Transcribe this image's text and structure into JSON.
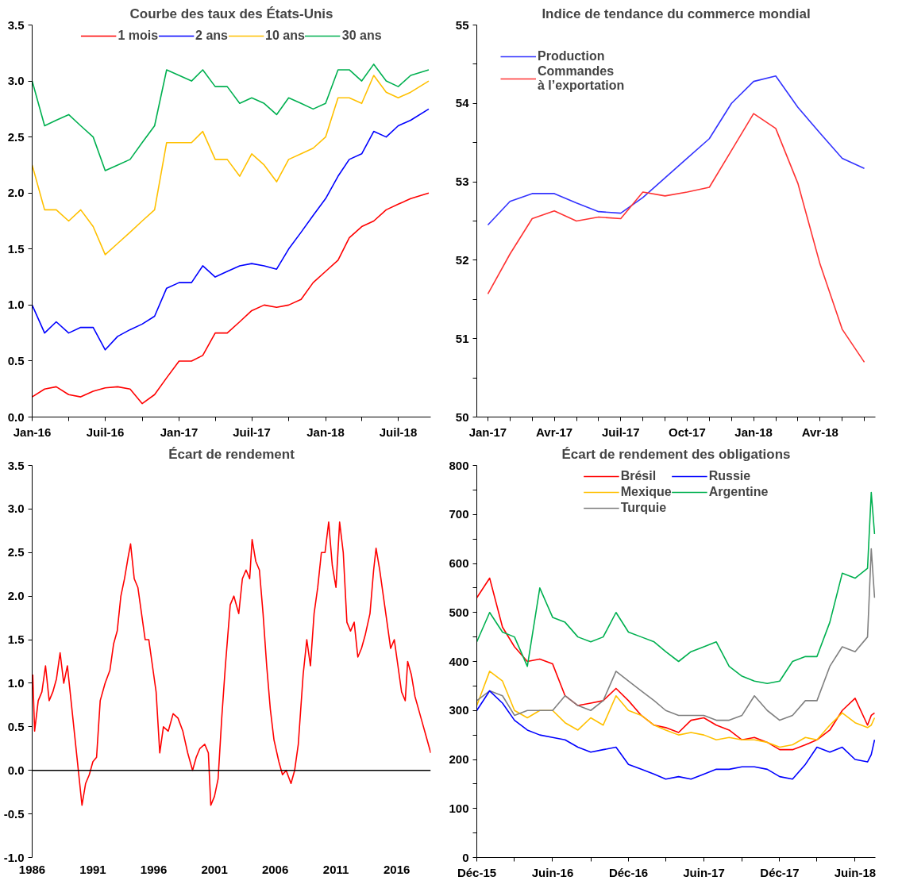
{
  "chart_data": [
    {
      "type": "line",
      "title": "Courbe des taux des États-Unis",
      "legend": "top",
      "grid": false,
      "x": [
        "2016-01",
        "2016-02",
        "2016-03",
        "2016-04",
        "2016-05",
        "2016-06",
        "2016-07",
        "2016-08",
        "2016-09",
        "2016-10",
        "2016-11",
        "2016-12",
        "2017-01",
        "2017-02",
        "2017-03",
        "2017-04",
        "2017-05",
        "2017-06",
        "2017-07",
        "2017-08",
        "2017-09",
        "2017-10",
        "2017-11",
        "2017-12",
        "2018-01",
        "2018-02",
        "2018-03",
        "2018-04",
        "2018-05",
        "2018-06",
        "2018-07",
        "2018-08",
        "2018-09-15"
      ],
      "series": [
        {
          "name": "1 mois",
          "color": "#ff0000",
          "values": [
            0.18,
            0.25,
            0.27,
            0.2,
            0.18,
            0.23,
            0.26,
            0.27,
            0.25,
            0.12,
            0.2,
            0.35,
            0.5,
            0.5,
            0.55,
            0.75,
            0.75,
            0.85,
            0.95,
            1.0,
            0.98,
            1.0,
            1.05,
            1.2,
            1.3,
            1.4,
            1.6,
            1.7,
            1.75,
            1.85,
            1.9,
            1.95,
            2.0
          ]
        },
        {
          "name": "2 ans",
          "color": "#0000ff",
          "values": [
            1.0,
            0.75,
            0.85,
            0.75,
            0.8,
            0.8,
            0.6,
            0.72,
            0.78,
            0.83,
            0.9,
            1.15,
            1.2,
            1.2,
            1.35,
            1.25,
            1.3,
            1.35,
            1.37,
            1.35,
            1.32,
            1.5,
            1.65,
            1.8,
            1.95,
            2.15,
            2.3,
            2.35,
            2.55,
            2.5,
            2.6,
            2.65,
            2.75
          ]
        },
        {
          "name": "10 ans",
          "color": "#ffc000",
          "values": [
            2.25,
            1.85,
            1.85,
            1.75,
            1.85,
            1.7,
            1.45,
            1.55,
            1.65,
            1.75,
            1.85,
            2.45,
            2.45,
            2.45,
            2.55,
            2.3,
            2.3,
            2.15,
            2.35,
            2.25,
            2.1,
            2.3,
            2.35,
            2.4,
            2.5,
            2.85,
            2.85,
            2.8,
            3.05,
            2.9,
            2.85,
            2.9,
            3.0
          ]
        },
        {
          "name": "30 ans",
          "color": "#00b050",
          "values": [
            3.0,
            2.6,
            2.65,
            2.7,
            2.6,
            2.5,
            2.2,
            2.25,
            2.3,
            2.45,
            2.6,
            3.1,
            3.05,
            3.0,
            3.1,
            2.95,
            2.95,
            2.8,
            2.85,
            2.8,
            2.7,
            2.85,
            2.8,
            2.75,
            2.8,
            3.1,
            3.1,
            3.0,
            3.15,
            3.0,
            2.95,
            3.05,
            3.1
          ]
        }
      ],
      "xlim": [
        "2016-01-01",
        "2018-09-20"
      ],
      "xticks": [
        {
          "value": "2016-01",
          "label": "Jan-16"
        },
        {
          "value": "2016-04",
          "label": null
        },
        {
          "value": "2016-07",
          "label": "Juil-16"
        },
        {
          "value": "2016-10",
          "label": null
        },
        {
          "value": "2017-01",
          "label": "Jan-17"
        },
        {
          "value": "2017-04",
          "label": null
        },
        {
          "value": "2017-07",
          "label": "Juil-17"
        },
        {
          "value": "2017-10",
          "label": null
        },
        {
          "value": "2018-01",
          "label": "Jan-18"
        },
        {
          "value": "2018-04",
          "label": null
        },
        {
          "value": "2018-07",
          "label": "Juil-18"
        }
      ],
      "ylim": [
        0,
        3.5
      ],
      "yticks": [
        {
          "value": 0,
          "label": "0.0"
        },
        {
          "value": 0.5,
          "label": "0.5"
        },
        {
          "value": 1,
          "label": "1.0"
        },
        {
          "value": 1.5,
          "label": "1.5"
        },
        {
          "value": 2,
          "label": "2.0"
        },
        {
          "value": 2.5,
          "label": "2.5"
        },
        {
          "value": 3,
          "label": "3.0"
        },
        {
          "value": 3.5,
          "label": "3.5"
        }
      ]
    },
    {
      "type": "line",
      "title": "Indice de tendance du commerce mondial",
      "legend": "top left",
      "grid": false,
      "categories": [
        "Jan-17",
        null,
        null,
        "Avr-17",
        null,
        null,
        "Juil-17",
        null,
        null,
        "Oct-17",
        null,
        null,
        "Jan-18",
        null,
        null,
        "Avr-18",
        null,
        null
      ],
      "series": [
        {
          "name": "Production",
          "color": "#3333ff",
          "values": [
            52.45,
            52.75,
            52.85,
            52.85,
            52.73,
            52.62,
            52.6,
            52.8,
            53.05,
            53.3,
            53.55,
            54.0,
            54.28,
            54.35,
            53.95,
            53.62,
            53.3,
            53.17
          ]
        },
        {
          "name": "Commandes\nà l’exportation",
          "color": "#ff3333",
          "values": [
            51.57,
            52.08,
            52.53,
            52.63,
            52.5,
            52.55,
            52.53,
            52.87,
            52.82,
            52.87,
            52.93,
            53.4,
            53.87,
            53.68,
            52.98,
            51.95,
            51.12,
            50.7
          ]
        }
      ],
      "ylim": [
        50,
        55
      ],
      "yticks": [
        50,
        {
          "value": 50.5,
          "label": null
        },
        51,
        {
          "value": 51.5,
          "label": null
        },
        52,
        {
          "value": 52.5,
          "label": null
        },
        53,
        {
          "value": 53.5,
          "label": null
        },
        54,
        {
          "value": 54.5,
          "label": null
        },
        55
      ]
    },
    {
      "type": "line",
      "title": "Écart de rendement",
      "grid": false,
      "x": [
        1986.05,
        1986.2,
        1986.5,
        1986.8,
        1987.1,
        1987.4,
        1987.7,
        1988.0,
        1988.3,
        1988.6,
        1988.9,
        1989.2,
        1989.5,
        1989.8,
        1990.1,
        1990.4,
        1990.7,
        1991.0,
        1991.3,
        1991.6,
        1992.0,
        1992.4,
        1992.7,
        1993.0,
        1993.3,
        1993.6,
        1993.9,
        1994.1,
        1994.4,
        1994.7,
        1995.0,
        1995.3,
        1995.6,
        1995.9,
        1996.2,
        1996.5,
        1996.8,
        1997.2,
        1997.6,
        1998.0,
        1998.4,
        1998.8,
        1999.2,
        1999.5,
        1999.8,
        2000.2,
        2000.5,
        2000.7,
        2001.0,
        2001.3,
        2001.6,
        2001.9,
        2002.3,
        2002.6,
        2003.0,
        2003.3,
        2003.6,
        2003.9,
        2004.1,
        2004.4,
        2004.7,
        2005.0,
        2005.3,
        2005.6,
        2005.9,
        2006.3,
        2006.6,
        2006.9,
        2007.3,
        2007.6,
        2007.9,
        2008.3,
        2008.6,
        2008.9,
        2009.2,
        2009.5,
        2009.8,
        2010.1,
        2010.4,
        2010.7,
        2011.0,
        2011.3,
        2011.6,
        2011.9,
        2012.2,
        2012.5,
        2012.8,
        2013.1,
        2013.4,
        2013.8,
        2014.1,
        2014.3,
        2014.6,
        2014.9,
        2015.2,
        2015.5,
        2015.8,
        2016.1,
        2016.4,
        2016.7,
        2016.9,
        2017.2,
        2017.5,
        2017.8,
        2018.1,
        2018.4,
        2018.8
      ],
      "series": [
        {
          "color": "#ff0000",
          "values": [
            1.1,
            0.45,
            0.8,
            0.9,
            1.2,
            0.8,
            0.9,
            1.05,
            1.35,
            1.0,
            1.2,
            0.8,
            0.4,
            0.0,
            -0.4,
            -0.15,
            -0.05,
            0.1,
            0.15,
            0.8,
            1.0,
            1.15,
            1.45,
            1.6,
            2.0,
            2.2,
            2.45,
            2.6,
            2.2,
            2.1,
            1.8,
            1.5,
            1.5,
            1.2,
            0.9,
            0.2,
            0.5,
            0.45,
            0.65,
            0.6,
            0.45,
            0.2,
            0.0,
            0.15,
            0.25,
            0.3,
            0.2,
            -0.4,
            -0.3,
            -0.1,
            0.6,
            1.2,
            1.9,
            2.0,
            1.8,
            2.2,
            2.3,
            2.2,
            2.65,
            2.4,
            2.3,
            1.8,
            1.2,
            0.7,
            0.35,
            0.1,
            -0.05,
            0.0,
            -0.15,
            0.0,
            0.3,
            1.1,
            1.5,
            1.2,
            1.8,
            2.1,
            2.5,
            2.5,
            2.85,
            2.35,
            2.1,
            2.85,
            2.5,
            1.7,
            1.6,
            1.7,
            1.3,
            1.4,
            1.55,
            1.8,
            2.3,
            2.55,
            2.3,
            2.0,
            1.7,
            1.4,
            1.5,
            1.2,
            0.9,
            0.8,
            1.25,
            1.1,
            0.85,
            0.7,
            0.55,
            0.4,
            0.2
          ]
        }
      ],
      "xlim": [
        1986,
        2018.8
      ],
      "xticks": [
        1986,
        1991,
        1996,
        2001,
        2006,
        2011,
        2016
      ],
      "ref_lines": [
        {
          "axis": "y",
          "value": 0,
          "color": "#000000"
        }
      ],
      "ylim": [
        -1,
        3.5
      ],
      "yticks": [
        {
          "value": -1,
          "label": "-1.0"
        },
        {
          "value": -0.5,
          "label": "-0.5"
        },
        {
          "value": 0,
          "label": "0.0"
        },
        {
          "value": 0.5,
          "label": "0.5"
        },
        {
          "value": 1,
          "label": "1.0"
        },
        {
          "value": 1.5,
          "label": "1.5"
        },
        {
          "value": 2,
          "label": "2.0"
        },
        {
          "value": 2.5,
          "label": "2.5"
        },
        {
          "value": 3,
          "label": "3.0"
        },
        {
          "value": 3.5,
          "label": "3.5"
        }
      ]
    },
    {
      "type": "line",
      "title": "Écart de rendement des obligations",
      "legend": "top",
      "grid": false,
      "x": [
        "2015-12",
        "2016-01",
        "2016-02",
        "2016-03",
        "2016-04",
        "2016-05",
        "2016-06",
        "2016-07",
        "2016-08",
        "2016-09",
        "2016-10",
        "2016-11",
        "2016-12",
        "2017-01",
        "2017-02",
        "2017-03",
        "2017-04",
        "2017-05",
        "2017-06",
        "2017-07",
        "2017-08",
        "2017-09",
        "2017-10",
        "2017-11",
        "2017-12",
        "2018-01",
        "2018-02",
        "2018-03",
        "2018-04",
        "2018-05",
        "2018-06",
        "2018-07",
        "2018-07-10",
        "2018-07-18"
      ],
      "series": [
        {
          "name": "Brésil",
          "color": "#ff0000",
          "values": [
            530,
            570,
            470,
            430,
            400,
            405,
            395,
            330,
            310,
            315,
            320,
            345,
            320,
            290,
            270,
            265,
            255,
            280,
            285,
            270,
            260,
            240,
            245,
            235,
            220,
            220,
            230,
            240,
            260,
            300,
            325,
            270,
            290,
            295
          ]
        },
        {
          "name": "Mexique",
          "color": "#ffc000",
          "values": [
            310,
            380,
            360,
            300,
            285,
            300,
            300,
            275,
            260,
            285,
            270,
            330,
            300,
            290,
            270,
            260,
            250,
            255,
            250,
            240,
            245,
            240,
            240,
            235,
            225,
            230,
            245,
            240,
            270,
            295,
            275,
            265,
            270,
            285
          ]
        },
        {
          "name": "Turquie",
          "color": "#808080",
          "values": [
            320,
            340,
            330,
            290,
            300,
            300,
            300,
            330,
            310,
            300,
            320,
            380,
            360,
            340,
            320,
            300,
            290,
            290,
            290,
            280,
            280,
            290,
            330,
            300,
            280,
            290,
            320,
            320,
            390,
            430,
            420,
            450,
            630,
            530
          ]
        },
        {
          "name": "Russie",
          "color": "#0000ff",
          "values": [
            300,
            340,
            315,
            280,
            260,
            250,
            245,
            240,
            225,
            215,
            220,
            225,
            190,
            180,
            170,
            160,
            165,
            160,
            170,
            180,
            180,
            185,
            185,
            180,
            165,
            160,
            190,
            225,
            215,
            225,
            200,
            195,
            210,
            240
          ]
        },
        {
          "name": "Argentine",
          "color": "#00b050",
          "values": [
            440,
            500,
            460,
            450,
            390,
            550,
            490,
            480,
            450,
            440,
            450,
            500,
            460,
            450,
            440,
            420,
            400,
            420,
            430,
            440,
            390,
            370,
            360,
            355,
            360,
            400,
            410,
            410,
            480,
            580,
            570,
            590,
            745,
            660
          ]
        }
      ],
      "xlim": [
        "2015-12-01",
        "2018-07-20"
      ],
      "xticks": [
        {
          "value": "2015-12",
          "label": "Déc-15"
        },
        {
          "value": "2016-03",
          "label": null
        },
        {
          "value": "2016-06",
          "label": "Juin-16"
        },
        {
          "value": "2016-09",
          "label": null
        },
        {
          "value": "2016-12",
          "label": "Déc-16"
        },
        {
          "value": "2017-03",
          "label": null
        },
        {
          "value": "2017-06",
          "label": "Juin-17"
        },
        {
          "value": "2017-09",
          "label": null
        },
        {
          "value": "2017-12",
          "label": "Déc-17"
        },
        {
          "value": "2018-03",
          "label": null
        },
        {
          "value": "2018-06",
          "label": "Juin-18"
        }
      ],
      "ylim": [
        0,
        800
      ],
      "yticks": [
        0,
        {
          "value": 50,
          "label": null
        },
        100,
        {
          "value": 150,
          "label": null
        },
        200,
        {
          "value": 250,
          "label": null
        },
        300,
        {
          "value": 350,
          "label": null
        },
        400,
        {
          "value": 450,
          "label": null
        },
        500,
        {
          "value": 550,
          "label": null
        },
        600,
        {
          "value": 650,
          "label": null
        },
        700,
        {
          "value": 750,
          "label": null
        },
        800
      ]
    }
  ]
}
